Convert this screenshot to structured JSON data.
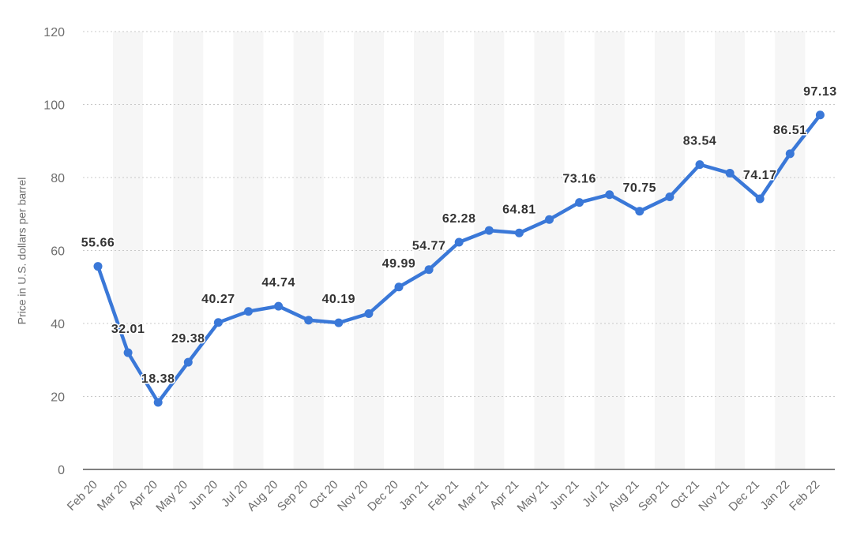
{
  "chart_data": {
    "type": "line",
    "title": "",
    "xlabel": "",
    "ylabel": "Price in U.S. dollars per barrel",
    "ylim": [
      0,
      120
    ],
    "yticks": [
      0,
      20,
      40,
      60,
      80,
      100,
      120
    ],
    "grid": true,
    "legend": "none",
    "categories": [
      "Feb 20",
      "Mar 20",
      "Apr 20",
      "May 20",
      "Jun 20",
      "Jul 20",
      "Aug 20",
      "Sep 20",
      "Oct 20",
      "Nov 20",
      "Dec 20",
      "Jan 21",
      "Feb 21",
      "Mar 21",
      "Apr 21",
      "May 21",
      "Jun 21",
      "Jul 21",
      "Aug 21",
      "Sep 21",
      "Oct 21",
      "Nov 21",
      "Dec 21",
      "Jan 22",
      "Feb 22"
    ],
    "series": [
      {
        "values": [
          55.66,
          32.01,
          18.38,
          29.38,
          40.27,
          43.3,
          44.74,
          40.9,
          40.19,
          42.7,
          49.99,
          54.77,
          62.28,
          65.5,
          64.81,
          68.5,
          73.16,
          75.3,
          70.75,
          74.7,
          83.54,
          81.2,
          74.17,
          86.51,
          97.13
        ],
        "color": "#3a78d8"
      }
    ],
    "data_labels": [
      {
        "index": 0,
        "text": "55.66"
      },
      {
        "index": 1,
        "text": "32.01"
      },
      {
        "index": 2,
        "text": "18.38"
      },
      {
        "index": 3,
        "text": "29.38"
      },
      {
        "index": 4,
        "text": "40.27"
      },
      {
        "index": 6,
        "text": "44.74"
      },
      {
        "index": 8,
        "text": "40.19"
      },
      {
        "index": 10,
        "text": "49.99"
      },
      {
        "index": 11,
        "text": "54.77"
      },
      {
        "index": 12,
        "text": "62.28"
      },
      {
        "index": 14,
        "text": "64.81"
      },
      {
        "index": 16,
        "text": "73.16"
      },
      {
        "index": 18,
        "text": "70.75"
      },
      {
        "index": 20,
        "text": "83.54"
      },
      {
        "index": 22,
        "text": "74.17"
      },
      {
        "index": 23,
        "text": "86.51"
      },
      {
        "index": 24,
        "text": "97.13"
      }
    ],
    "colors": {
      "line": "#3a78d8",
      "band": "#f6f6f6",
      "grid": "#c8c8c8",
      "axis": "#333333",
      "tick_text": "#6e6e6e",
      "label_text": "#333333"
    }
  }
}
